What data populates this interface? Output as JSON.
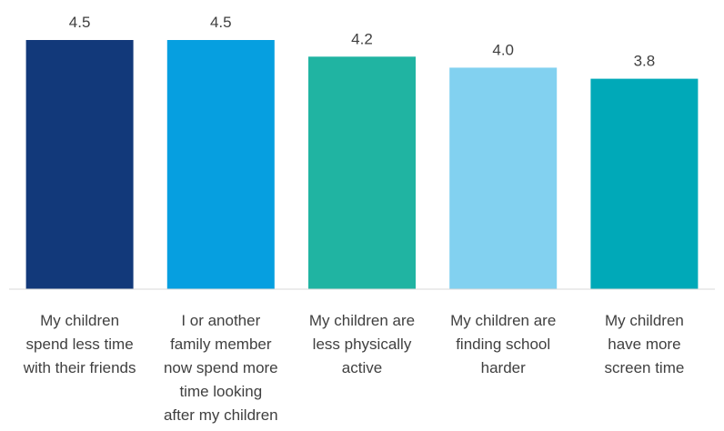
{
  "chart_data": {
    "type": "bar",
    "categories": [
      [
        "My children",
        "spend less time",
        "with their friends"
      ],
      [
        "I or another",
        "family member",
        "now spend more",
        "time looking",
        "after my children"
      ],
      [
        "My children are",
        "less physically",
        "active"
      ],
      [
        "My children are",
        "finding school",
        "harder"
      ],
      [
        "My children",
        "have more",
        "screen time"
      ]
    ],
    "values": [
      4.5,
      4.5,
      4.2,
      4.0,
      3.8
    ],
    "value_labels": [
      "4.5",
      "4.5",
      "4.2",
      "4.0",
      "3.8"
    ],
    "colors": [
      "#12397A",
      "#069FE0",
      "#20B4A2",
      "#82D1F0",
      "#00A9B8"
    ],
    "ylim": [
      0,
      4.5
    ],
    "grid": false,
    "legend": "none"
  }
}
